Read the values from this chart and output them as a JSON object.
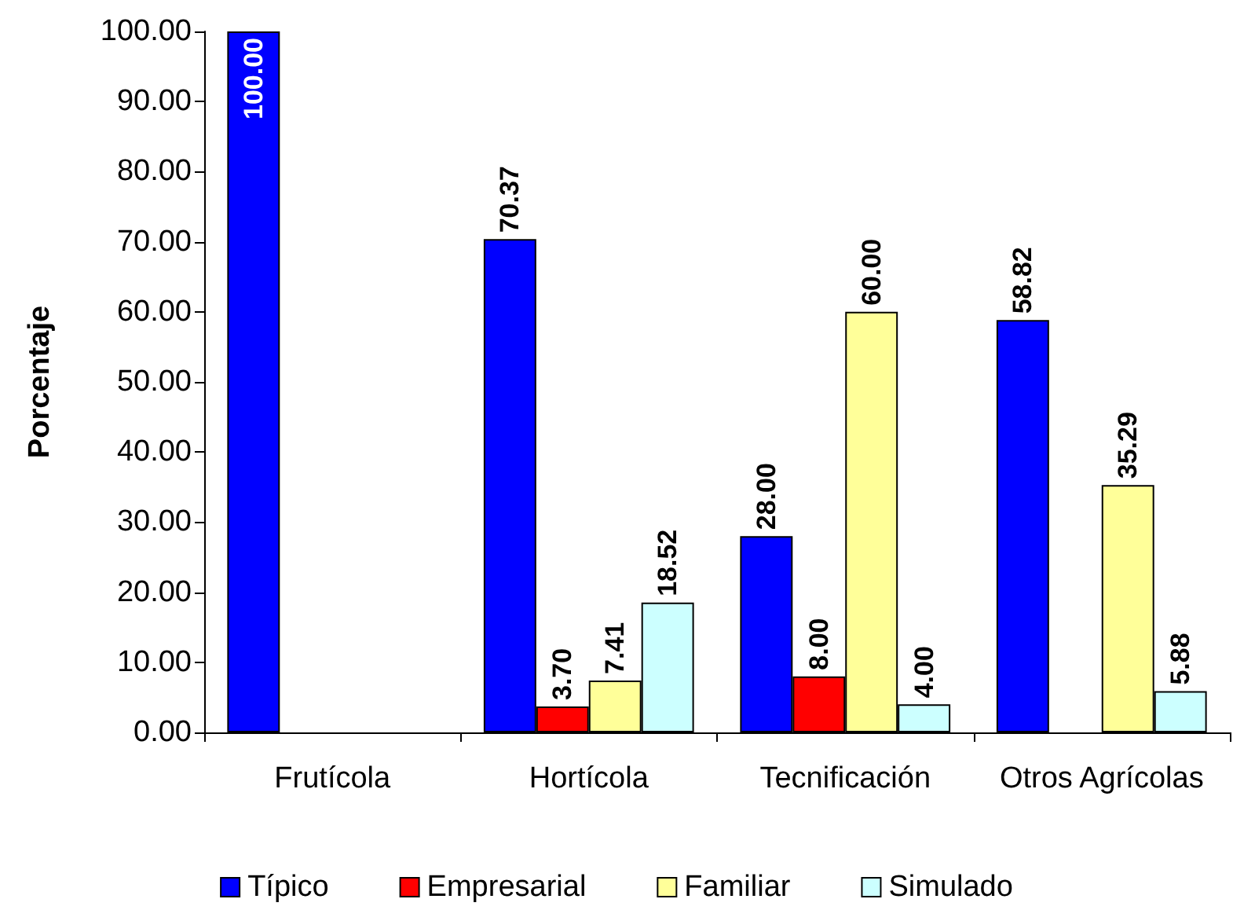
{
  "chart_data": {
    "type": "bar",
    "ylabel": "Porcentaje",
    "categories": [
      "Frutícola",
      "Hortícola",
      "Tecnificación",
      "Otros Agrícolas"
    ],
    "series": [
      {
        "name": "Típico",
        "color": "#0000ff",
        "values": [
          100.0,
          70.37,
          28.0,
          58.82
        ],
        "value_labels": [
          "100.00",
          "70.37",
          "28.00",
          "58.82"
        ]
      },
      {
        "name": "Empresarial",
        "color": "#ff0000",
        "values": [
          null,
          3.7,
          8.0,
          null
        ],
        "value_labels": [
          null,
          "3.70",
          "8.00",
          null
        ]
      },
      {
        "name": "Familiar",
        "color": "#ffff99",
        "values": [
          null,
          7.41,
          60.0,
          35.29
        ],
        "value_labels": [
          null,
          "7.41",
          "60.00",
          "35.29"
        ]
      },
      {
        "name": "Simulado",
        "color": "#ccffff",
        "values": [
          null,
          18.52,
          4.0,
          5.88
        ],
        "value_labels": [
          null,
          "18.52",
          "4.00",
          "5.88"
        ]
      }
    ],
    "ylim": [
      0,
      100
    ],
    "yticks": [
      {
        "value": 0,
        "label": "0.00"
      },
      {
        "value": 10,
        "label": "10.00"
      },
      {
        "value": 20,
        "label": "20.00"
      },
      {
        "value": 30,
        "label": "30.00"
      },
      {
        "value": 40,
        "label": "40.00"
      },
      {
        "value": 50,
        "label": "50.00"
      },
      {
        "value": 60,
        "label": "60.00"
      },
      {
        "value": 70,
        "label": "70.00"
      },
      {
        "value": 80,
        "label": "80.00"
      },
      {
        "value": 90,
        "label": "90.00"
      },
      {
        "value": 100,
        "label": "100.00"
      }
    ],
    "grid": false,
    "legend": "bottom"
  }
}
